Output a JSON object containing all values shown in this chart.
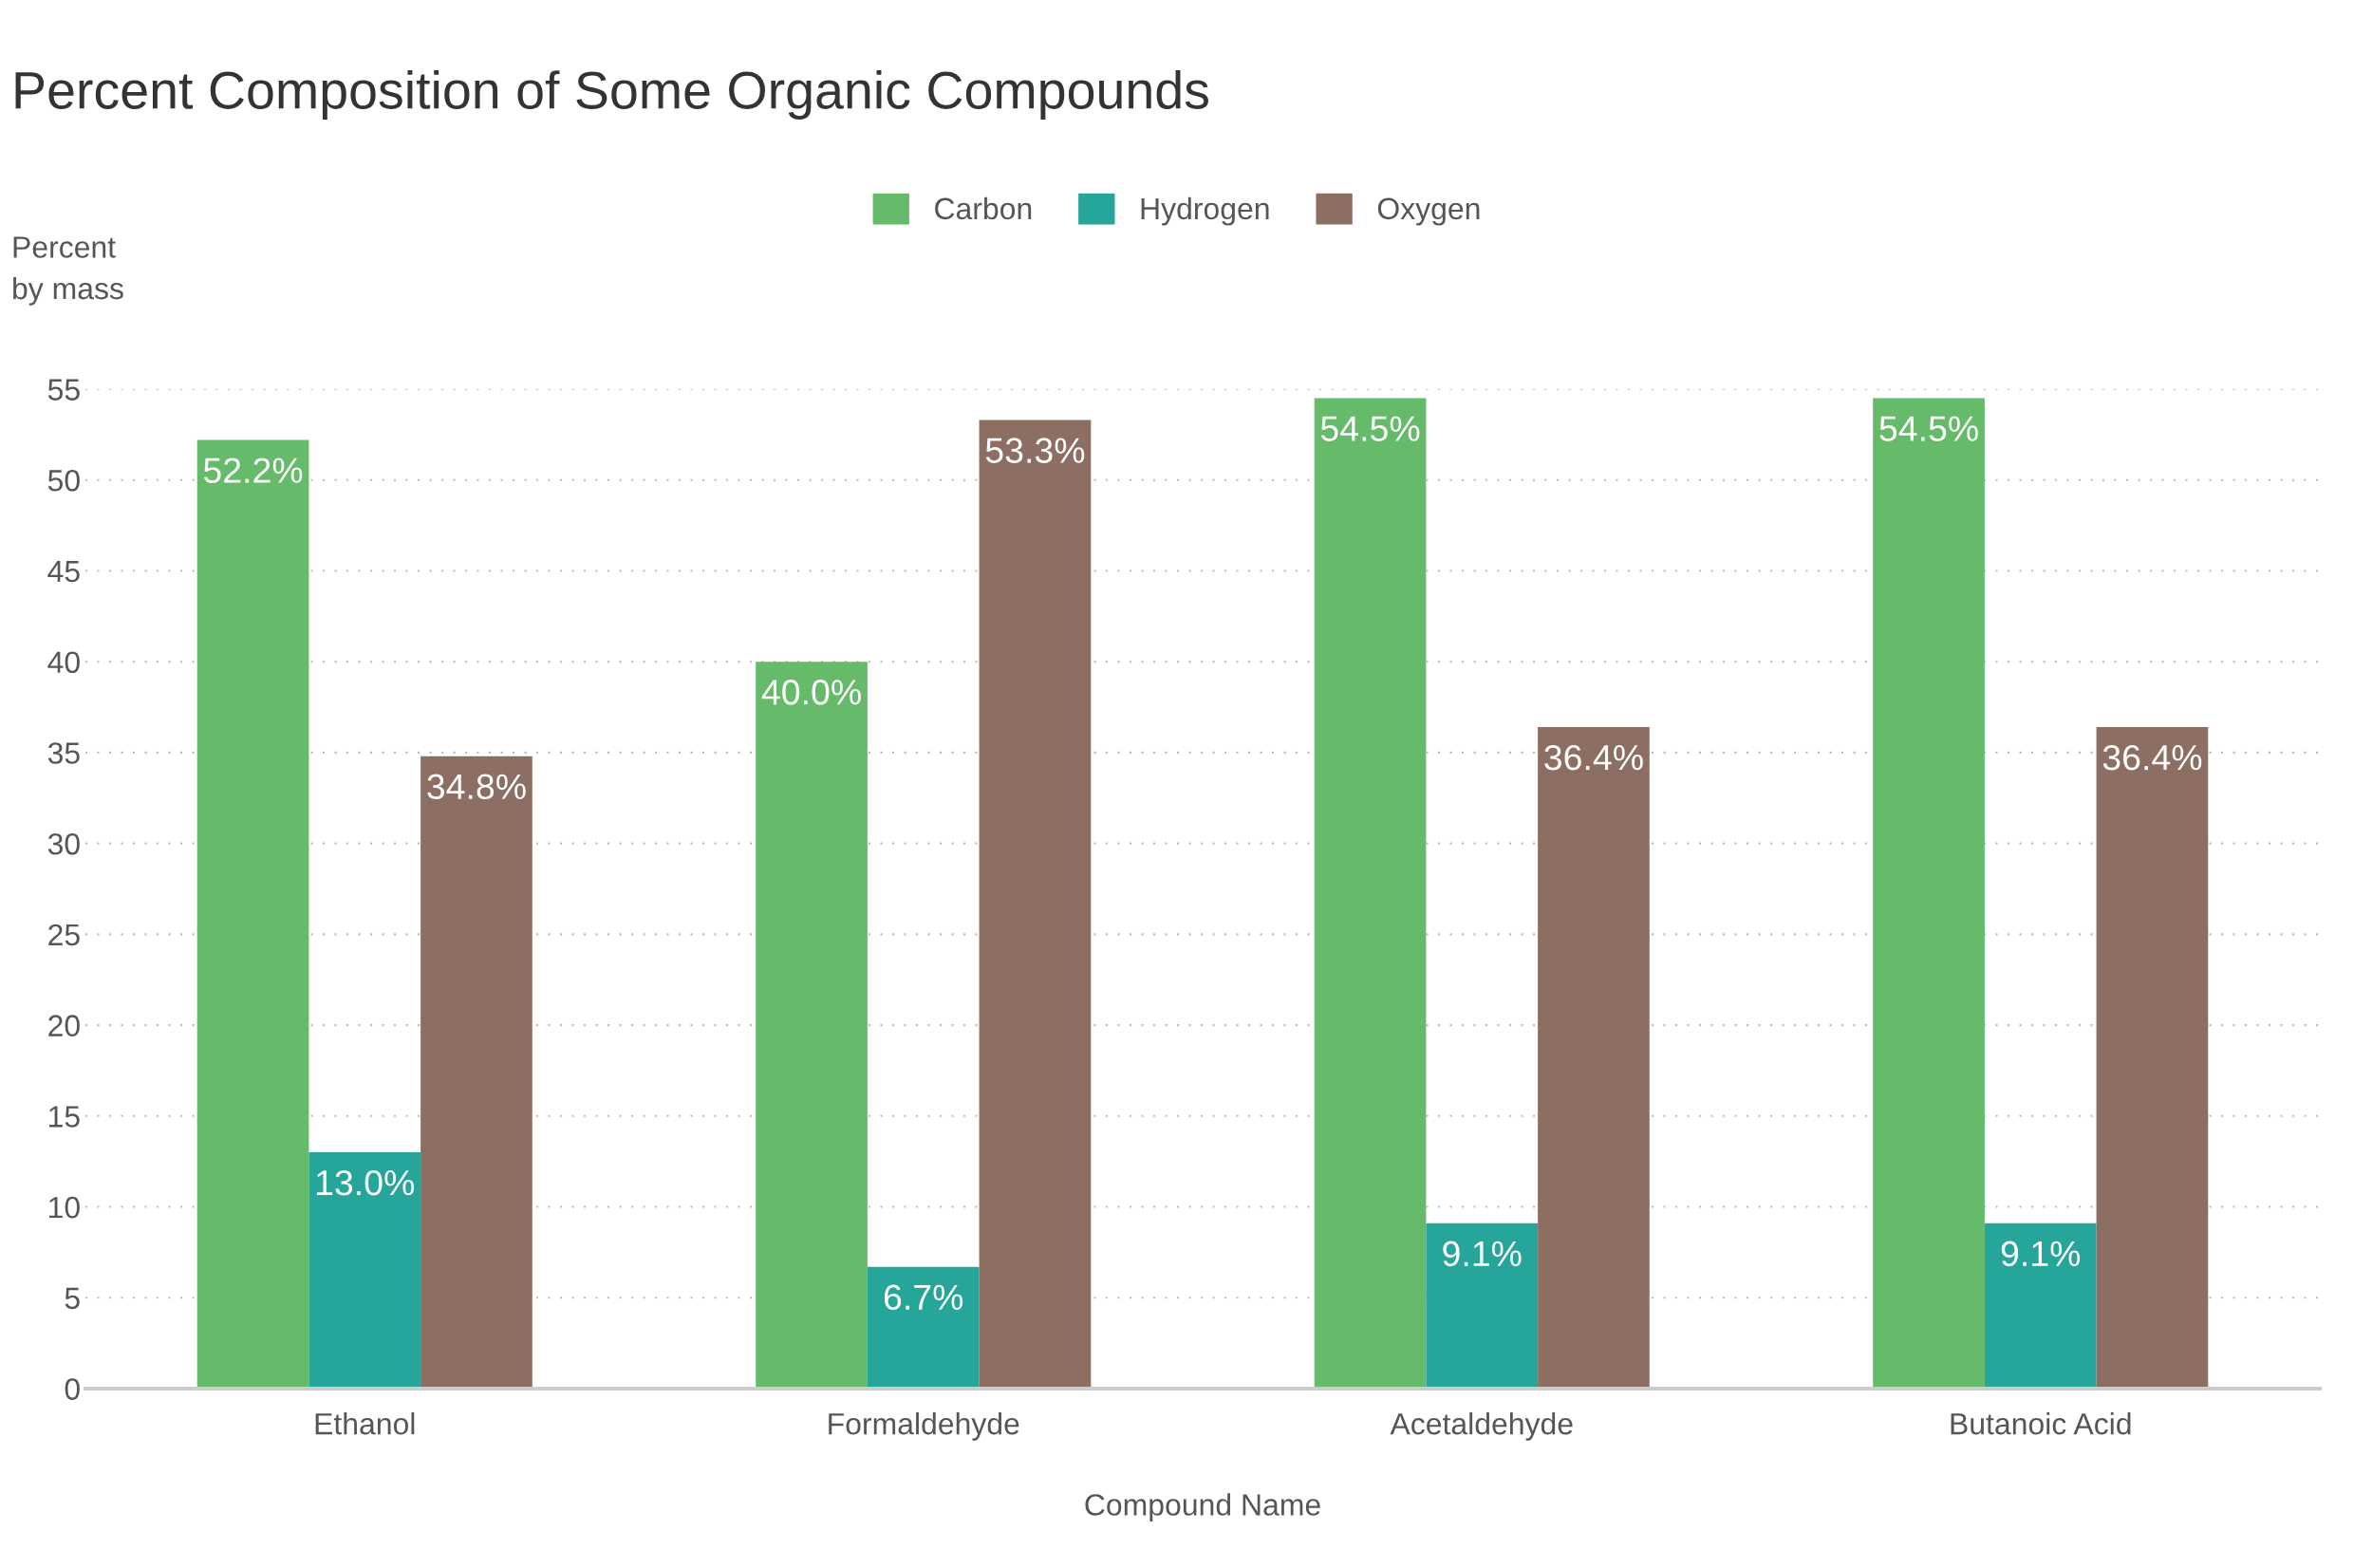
{
  "chart_data": {
    "type": "bar",
    "title": "Percent Composition of Some Organic Compounds",
    "xlabel": "Compound Name",
    "ylabel": "Percent\nby mass",
    "categories": [
      "Ethanol",
      "Formaldehyde",
      "Acetaldehyde",
      "Butanoic Acid"
    ],
    "series": [
      {
        "name": "Carbon",
        "color": "#66bb6a",
        "values": [
          52.2,
          40.0,
          54.5,
          54.5
        ],
        "value_labels": [
          "52.2%",
          "40.0%",
          "54.5%",
          "54.5%"
        ]
      },
      {
        "name": "Hydrogen",
        "color": "#26a69a",
        "values": [
          13.0,
          6.7,
          9.1,
          9.1
        ],
        "value_labels": [
          "13.0%",
          "6.7%",
          "9.1%",
          "9.1%"
        ]
      },
      {
        "name": "Oxygen",
        "color": "#8d6e63",
        "values": [
          34.8,
          53.3,
          36.4,
          36.4
        ],
        "value_labels": [
          "34.8%",
          "53.3%",
          "36.4%",
          "36.4%"
        ]
      }
    ],
    "ylim": [
      0,
      55
    ],
    "yticks": [
      0,
      5,
      10,
      15,
      20,
      25,
      30,
      35,
      40,
      45,
      50,
      55
    ],
    "grid": "y",
    "legend": "top"
  }
}
